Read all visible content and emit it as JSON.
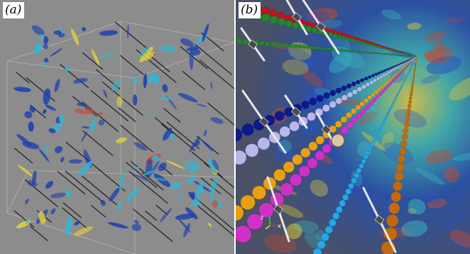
{
  "figure": {
    "panels": [
      {
        "label": "(a)",
        "scene": "simulation-volume-with-lines"
      },
      {
        "label": "(b)",
        "scene": "close-up-volume-with-bead-chains"
      }
    ]
  },
  "colors": {
    "background_a": "#8c8c8c",
    "background_b": "#4a5066",
    "vortex_blue": "#1a3fb0",
    "vortex_cyan": "#2fb7d6",
    "vortex_yellow": "#e6d23a",
    "vortex_red": "#d8402a",
    "chain_red": "#c0141a",
    "chain_green": "#1f8a2a",
    "chain_navy": "#0c1a8c",
    "chain_lavender": "#b9b6ea",
    "chain_orange": "#e8a010",
    "chain_magenta": "#d030c8",
    "chain_cyan": "#22a8e8",
    "chain_brown": "#c06a10"
  },
  "axis_triad": {
    "z": "z",
    "x": "x"
  }
}
